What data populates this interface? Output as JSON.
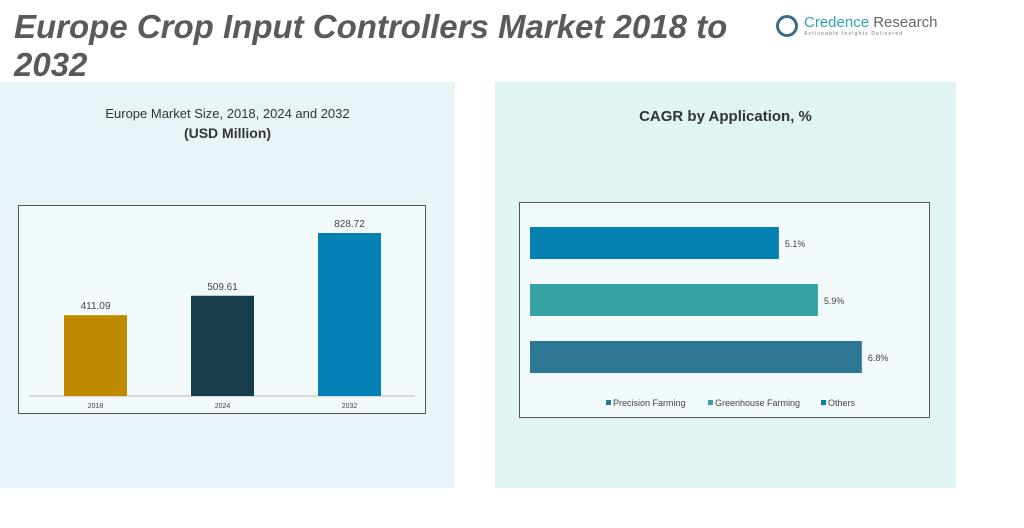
{
  "title": "Europe Crop Input Controllers Market 2018 to 2032",
  "logo": {
    "name1": "Credence",
    "name2": " Research",
    "tagline": "Actionable Insights Delivered"
  },
  "chart_data": [
    {
      "type": "bar",
      "title": "Europe Market Size, 2018, 2024 and 2032",
      "subtitle": "(USD Million)",
      "categories": [
        "2018",
        "2024",
        "2032"
      ],
      "values": [
        411.09,
        509.61,
        828.72
      ],
      "labels": [
        "411.09",
        "509.61",
        "828.72"
      ],
      "colors": [
        "#c08a00",
        "#173c4c",
        "#0381b4"
      ],
      "ylim": [
        0,
        900
      ],
      "grid": false
    },
    {
      "type": "bar",
      "orientation": "horizontal",
      "title": "CAGR by Application, %",
      "categories": [
        "Others",
        "Greenhouse Farming",
        "Precision Farming"
      ],
      "values": [
        5.1,
        5.9,
        6.8
      ],
      "labels": [
        "5.1%",
        "5.9%",
        "6.8%"
      ],
      "colors": [
        "#0380b0",
        "#35a3a3",
        "#2e7896"
      ],
      "legend": [
        "Precision Farming",
        "Greenhouse Farming",
        "Others"
      ],
      "legend_colors": [
        "#2e7896",
        "#35a3a3",
        "#0380b0"
      ],
      "legend_position": "bottom",
      "grid": false
    }
  ]
}
